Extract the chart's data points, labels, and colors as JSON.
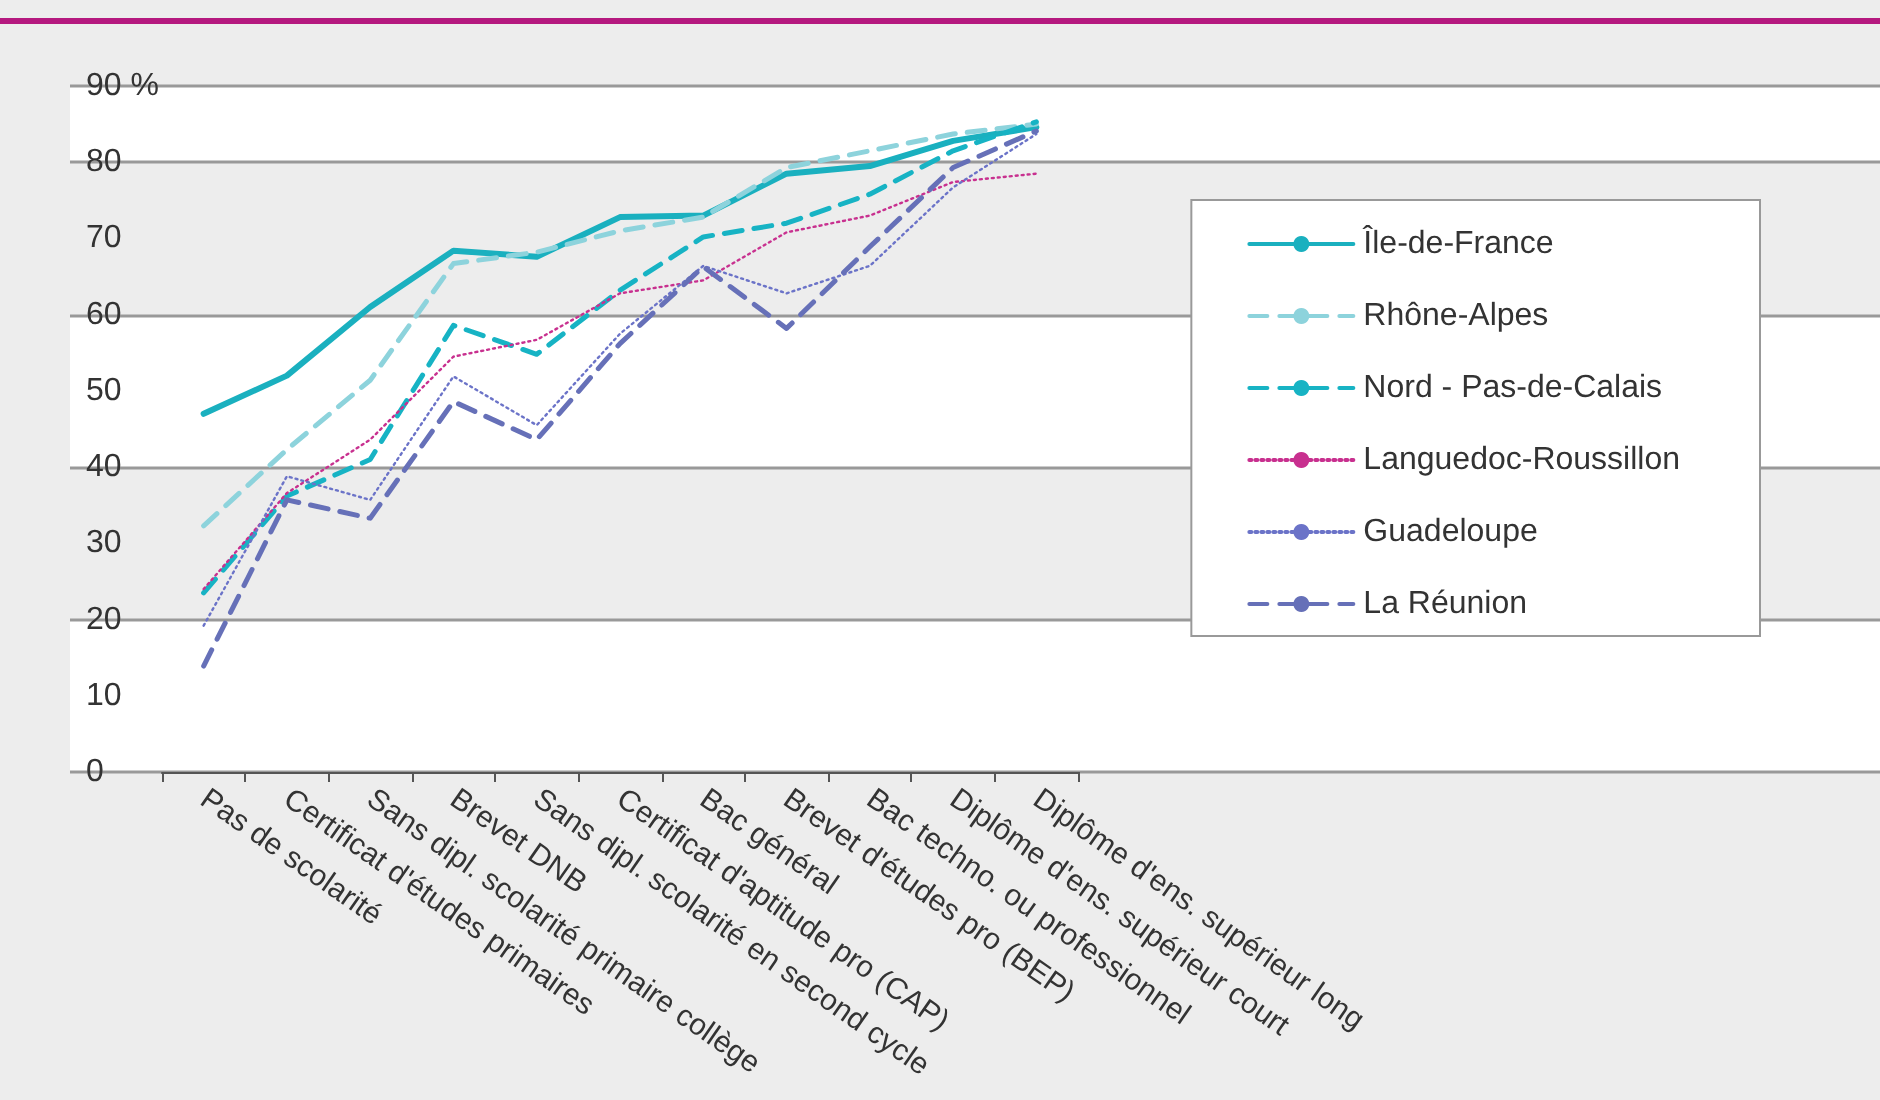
{
  "chart_data": {
    "type": "line",
    "categories": [
      "Pas de scolarité",
      "Certificat d'études primaires",
      "Sans dipl. scolarité primaire collège",
      "Brevet DNB",
      "Sans dipl. scolarité en second cycle",
      "Certificat d'aptitude pro (CAP)",
      "Bac général",
      "Brevet d'études pro (BEP)",
      "Bac techno. ou professionnel",
      "Diplôme d'ens. supérieur court",
      "Diplôme d'ens. supérieur long"
    ],
    "series": [
      {
        "name": "Île-de-France",
        "color": "#1ab0bf",
        "line_style": "solid",
        "values": [
          47,
          52,
          61,
          68.4,
          67.6,
          72.8,
          73,
          78.5,
          79.5,
          82.8,
          84.6
        ]
      },
      {
        "name": "Rhône-Alpes",
        "color": "#8dd3dc",
        "line_style": "dashed",
        "values": [
          32.3,
          42.3,
          51.4,
          66.7,
          68.2,
          71,
          72.8,
          79.3,
          81.5,
          83.7,
          85
        ]
      },
      {
        "name": "Nord - Pas-de-Calais",
        "color": "#17b3c4",
        "line_style": "dashed",
        "values": [
          23.5,
          36.2,
          41,
          58.6,
          54.8,
          63.2,
          70.2,
          72,
          75.8,
          81.5,
          85.3
        ]
      },
      {
        "name": "Languedoc-Roussillon",
        "color": "#c8308f",
        "line_style": "dotted",
        "values": [
          24,
          36.6,
          43.6,
          54.5,
          56.7,
          62.8,
          64.5,
          70.8,
          73,
          77.4,
          78.5
        ]
      },
      {
        "name": "Guadeloupe",
        "color": "#6b73c8",
        "line_style": "dotted",
        "values": [
          19.2,
          38.8,
          35.7,
          51.9,
          45.5,
          57.5,
          66.4,
          62.8,
          66.4,
          76.7,
          83.7
        ]
      },
      {
        "name": "La Réunion",
        "color": "#6670b8",
        "line_style": "dashed",
        "values": [
          13.9,
          35.7,
          33.3,
          48.6,
          43.6,
          56.2,
          66.3,
          58.2,
          68.9,
          79.3,
          84.1
        ]
      }
    ],
    "ylim": [
      0,
      90
    ],
    "yticks": [
      0,
      10,
      20,
      30,
      40,
      50,
      60,
      70,
      80,
      {
        "value": 90,
        "label": "90 %"
      }
    ],
    "grid": "y",
    "legend": "right",
    "marker": "none"
  }
}
